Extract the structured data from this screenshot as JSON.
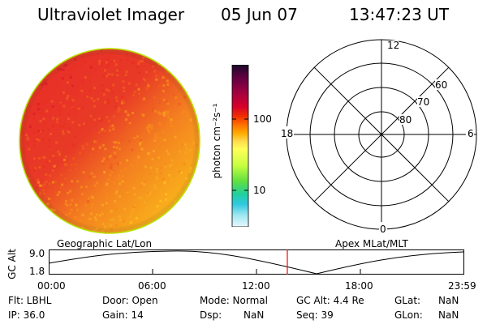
{
  "header": {
    "title": "Ultraviolet Imager",
    "date": "05 Jun 07",
    "time": "13:47:23 UT"
  },
  "colorbar": {
    "unit_label": "photon cm⁻²s⁻¹",
    "tick_labels": [
      "100",
      "10"
    ],
    "colors": [
      "#1a0a2a",
      "#5a0040",
      "#a00040",
      "#d8002a",
      "#f03000",
      "#ff7000",
      "#ffa800",
      "#ffd84a",
      "#ffff5a",
      "#c8ff40",
      "#60e040",
      "#20d0a0",
      "#30c8e0",
      "#a0e8f0",
      "#e8f8ff"
    ]
  },
  "polar_plot": {
    "time_labels": [
      "12",
      "18",
      "6",
      "0"
    ],
    "lat_labels": [
      "60",
      "70",
      "80"
    ]
  },
  "timeline": {
    "left_label": "Geographic Lat/Lon",
    "right_label": "Apex MLat/MLT",
    "axis_label": "GC Alt",
    "y_ticks": [
      "9.0",
      "1.8"
    ],
    "x_ticks": [
      "00:00",
      "06:00",
      "12:00",
      "18:00",
      "23:59"
    ],
    "marker_color": "#ff0000"
  },
  "status": {
    "flt": "Flt: LBHL",
    "ip": "IP: 36.0",
    "door": "Door: Open",
    "gain": "Gain: 14",
    "mode": "Mode: Normal",
    "dsp": "Dsp:",
    "dsp_val": "NaN",
    "gcalt": "GC Alt: 4.4 Re",
    "seq": "Seq: 39",
    "glat": "GLat:",
    "glat_val": "NaN",
    "glon": "GLon:",
    "glon_val": "NaN"
  }
}
